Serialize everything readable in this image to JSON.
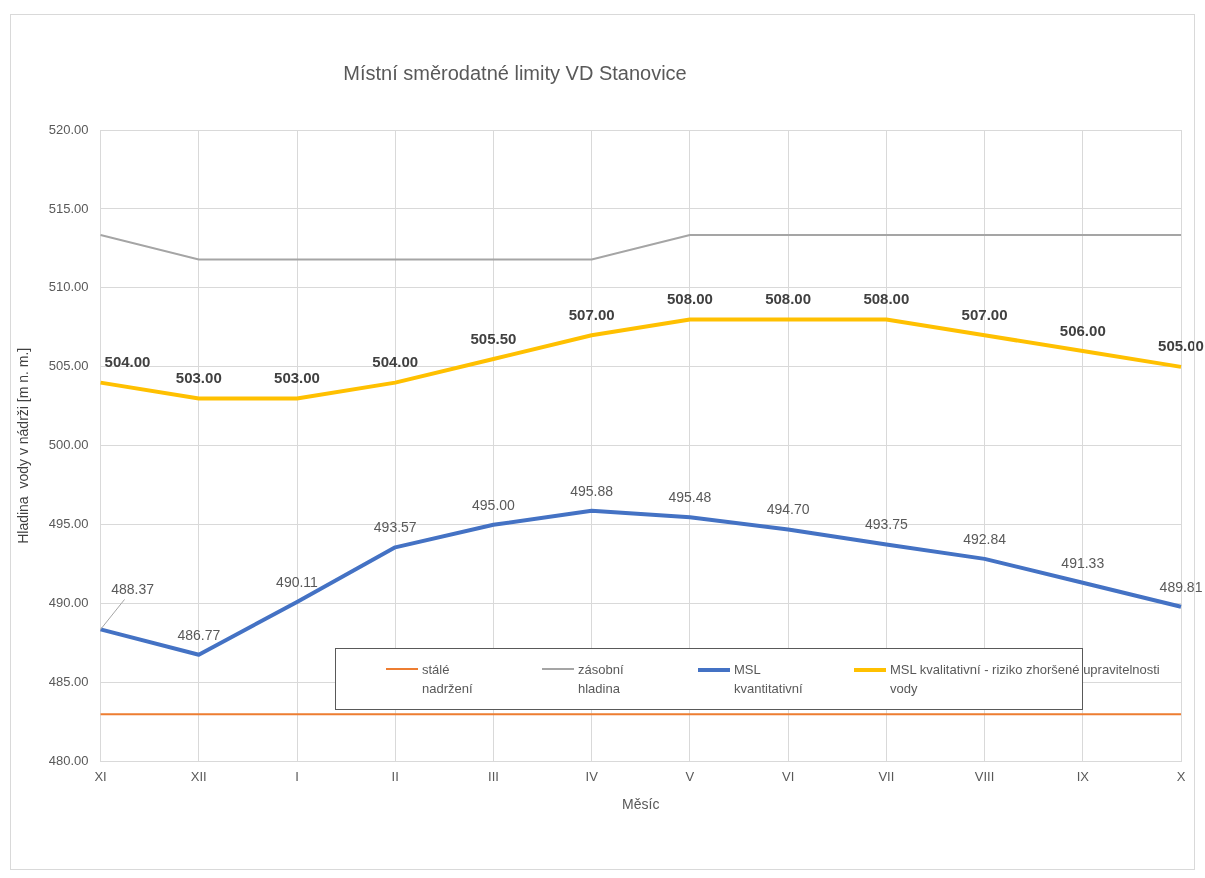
{
  "chart_data": {
    "type": "line",
    "title": "Místní směrodatné limity VD Stanovice",
    "xlabel": "Měsíc",
    "ylabel": "Hladina  vody v nádrži [m n. m.]",
    "categories": [
      "XI",
      "XII",
      "I",
      "II",
      "III",
      "IV",
      "V",
      "VI",
      "VII",
      "VIII",
      "IX",
      "X"
    ],
    "series": [
      {
        "name": "stálé nadržení",
        "color": "#ed7d31",
        "values": [
          483,
          483,
          483,
          483,
          483,
          483,
          483,
          483,
          483,
          483,
          483,
          483
        ]
      },
      {
        "name": "zásobní hladina",
        "color": "#a5a5a5",
        "values": [
          513.35,
          511.8,
          511.8,
          511.8,
          511.8,
          511.8,
          513.35,
          513.35,
          513.35,
          513.35,
          513.35,
          513.35
        ]
      },
      {
        "name": "MSL kvantitativní",
        "color": "#4472c4",
        "values": [
          488.37,
          486.77,
          490.11,
          493.57,
          495.0,
          495.88,
          495.48,
          494.7,
          493.75,
          492.84,
          491.33,
          489.81
        ],
        "value_labels": [
          "488.37",
          "486.77",
          "490.11",
          "493.57",
          "495.00",
          "495.88",
          "495.48",
          "494.70",
          "493.75",
          "492.84",
          "491.33",
          "489.81"
        ]
      },
      {
        "name": "MSL kvalitativní - riziko zhoršené upravitelnosti vody",
        "color": "#ffc000",
        "values": [
          504,
          503,
          503,
          504,
          505.5,
          507,
          508,
          508,
          508,
          507,
          506,
          505
        ],
        "value_labels": [
          "504.00",
          "503.00",
          "503.00",
          "504.00",
          "505.50",
          "507.00",
          "508.00",
          "508.00",
          "508.00",
          "507.00",
          "506.00",
          "505.00"
        ]
      }
    ],
    "ylim": [
      480,
      520
    ],
    "yticks": [
      {
        "value": 480,
        "label": "480.00"
      },
      {
        "value": 485,
        "label": "485.00"
      },
      {
        "value": 490,
        "label": "490.00"
      },
      {
        "value": 495,
        "label": "495.00"
      },
      {
        "value": 500,
        "label": "500.00"
      },
      {
        "value": 505,
        "label": "505.00"
      },
      {
        "value": 510,
        "label": "510.00"
      },
      {
        "value": 515,
        "label": "515.00"
      },
      {
        "value": 520,
        "label": "520.00"
      }
    ],
    "grid": true,
    "legend": "bottom",
    "marker": "none",
    "line_style": "solid"
  }
}
